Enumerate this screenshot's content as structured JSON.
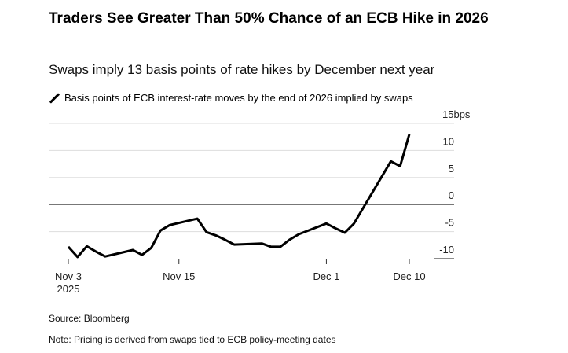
{
  "header": {
    "title": "Traders See Greater Than 50% Chance of an ECB Hike in 2026",
    "subtitle": "Swaps imply 13 basis points of rate hikes by December next year"
  },
  "legend": {
    "icon": "pen-line-icon",
    "label": "Basis points of ECB interest-rate moves by the end of 2026 implied by swaps"
  },
  "footer": {
    "source": "Source: Bloomberg",
    "note": "Note: Pricing is derived from swaps tied to ECB policy-meeting dates"
  },
  "chart_data": {
    "type": "line",
    "title": "Traders See Greater Than 50% Chance of an ECB Hike in 2026",
    "subtitle": "Swaps imply 13 basis points of rate hikes by December next year",
    "xlabel": "",
    "ylabel": "bps",
    "ylim": [
      -10,
      15
    ],
    "yticks": [
      15,
      10,
      5,
      0,
      -5,
      -10
    ],
    "ytick_labels": [
      "15bps",
      "10",
      "5",
      "0",
      "-5",
      "-10"
    ],
    "xlim": [
      "2025-11-03",
      "2025-12-10"
    ],
    "xticks": [
      {
        "date": "2025-11-03",
        "label": "Nov 3",
        "sublabel": "2025"
      },
      {
        "date": "2025-11-15",
        "label": "Nov 15"
      },
      {
        "date": "2025-12-01",
        "label": "Dec 1"
      },
      {
        "date": "2025-12-10",
        "label": "Dec 10"
      }
    ],
    "grid": true,
    "legend_position": "top-left",
    "line_color": "#000000",
    "series": [
      {
        "name": "Basis points of ECB interest-rate moves by the end of 2026 implied by swaps",
        "x": [
          "2025-11-03",
          "2025-11-04",
          "2025-11-05",
          "2025-11-06",
          "2025-11-07",
          "2025-11-10",
          "2025-11-11",
          "2025-11-12",
          "2025-11-13",
          "2025-11-14",
          "2025-11-17",
          "2025-11-18",
          "2025-11-19",
          "2025-11-20",
          "2025-11-21",
          "2025-11-24",
          "2025-11-25",
          "2025-11-26",
          "2025-11-27",
          "2025-11-28",
          "2025-12-01",
          "2025-12-02",
          "2025-12-03",
          "2025-12-04",
          "2025-12-05",
          "2025-12-08",
          "2025-12-09",
          "2025-12-10"
        ],
        "values": [
          -7.8,
          -9.7,
          -7.7,
          -8.7,
          -9.6,
          -8.4,
          -9.3,
          -8.0,
          -4.8,
          -3.8,
          -2.6,
          -5.1,
          -5.7,
          -6.5,
          -7.4,
          -7.2,
          -7.8,
          -7.8,
          -6.5,
          -5.5,
          -3.5,
          -4.4,
          -5.2,
          -3.5,
          -0.6,
          8.0,
          7.1,
          13.0
        ]
      }
    ]
  }
}
